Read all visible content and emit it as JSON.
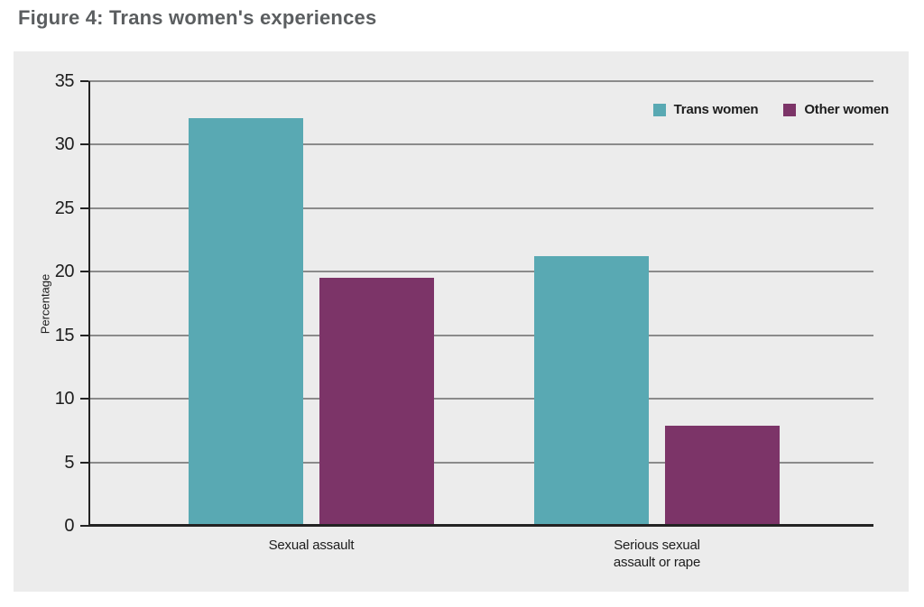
{
  "figure_title": "Figure 4: Trans women's experiences",
  "colors": {
    "trans_women": "#59A9B3",
    "other_women": "#7C3468",
    "panel_background": "#ECECEC",
    "gridline": "#8B8B8B",
    "axis": "#232323",
    "text": "#1D1D1D",
    "title_text": "#5B5E60"
  },
  "chart_data": {
    "type": "bar",
    "title": "Figure 4: Trans women's experiences",
    "categories": [
      "Sexual assault",
      "Serious sexual\nassault or rape"
    ],
    "series": [
      {
        "name": "Trans women",
        "color": "#59A9B3",
        "values": [
          32.1,
          21.2
        ]
      },
      {
        "name": "Other women",
        "color": "#7C3468",
        "values": [
          19.5,
          7.9
        ]
      }
    ],
    "xlabel": "",
    "ylabel": "Percentage",
    "ylim": [
      0,
      35
    ],
    "ytick_step": 5,
    "yticks": [
      0,
      5,
      10,
      15,
      20,
      25,
      30,
      35
    ],
    "grid": true,
    "legend_position": "top-right"
  }
}
